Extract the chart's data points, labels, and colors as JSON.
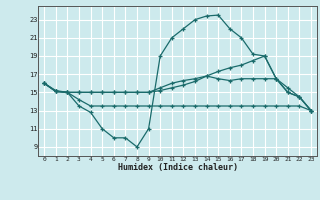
{
  "xlabel": "Humidex (Indice chaleur)",
  "background_color": "#cdeaed",
  "grid_color": "#ffffff",
  "line_color": "#1a6b6b",
  "x_ticks": [
    0,
    1,
    2,
    3,
    4,
    5,
    6,
    7,
    8,
    9,
    10,
    11,
    12,
    13,
    14,
    15,
    16,
    17,
    18,
    19,
    20,
    21,
    22,
    23
  ],
  "y_ticks": [
    9,
    11,
    13,
    15,
    17,
    19,
    21,
    23
  ],
  "ylim": [
    8.0,
    24.5
  ],
  "xlim": [
    -0.5,
    23.5
  ],
  "series": [
    {
      "x": [
        0,
        1,
        2,
        3,
        4,
        5,
        6,
        7,
        8,
        9,
        10,
        11,
        12,
        13,
        14,
        15,
        16,
        17,
        18,
        19,
        20,
        21,
        22,
        23
      ],
      "y": [
        16,
        15.2,
        15,
        13.5,
        12.8,
        11,
        10,
        10,
        9,
        11,
        19,
        21,
        22,
        23,
        23.4,
        23.5,
        22,
        21,
        19.2,
        19,
        16.5,
        15,
        14.5,
        13
      ]
    },
    {
      "x": [
        0,
        1,
        2,
        3,
        4,
        5,
        6,
        7,
        8,
        9,
        10,
        11,
        12,
        13,
        14,
        15,
        16,
        17,
        18,
        19,
        20,
        21,
        22,
        23
      ],
      "y": [
        16,
        15.1,
        15,
        14.2,
        13.5,
        13.5,
        13.5,
        13.5,
        13.5,
        13.5,
        13.5,
        13.5,
        13.5,
        13.5,
        13.5,
        13.5,
        13.5,
        13.5,
        13.5,
        13.5,
        13.5,
        13.5,
        13.5,
        13
      ]
    },
    {
      "x": [
        0,
        1,
        2,
        3,
        4,
        5,
        6,
        7,
        8,
        9,
        10,
        11,
        12,
        13,
        14,
        15,
        16,
        17,
        18,
        19,
        20,
        21,
        22,
        23
      ],
      "y": [
        16,
        15.1,
        15,
        15,
        15,
        15,
        15,
        15,
        15,
        15,
        15.2,
        15.5,
        15.8,
        16.2,
        16.8,
        17.3,
        17.7,
        18,
        18.5,
        19,
        16.5,
        15,
        14.5,
        13
      ]
    },
    {
      "x": [
        0,
        1,
        2,
        3,
        4,
        5,
        6,
        7,
        8,
        9,
        10,
        11,
        12,
        13,
        14,
        15,
        16,
        17,
        18,
        19,
        20,
        21,
        22,
        23
      ],
      "y": [
        16,
        15.1,
        15,
        15,
        15,
        15,
        15,
        15,
        15,
        15,
        15.5,
        16,
        16.3,
        16.5,
        16.8,
        16.5,
        16.3,
        16.5,
        16.5,
        16.5,
        16.5,
        15.5,
        14.5,
        13
      ]
    }
  ]
}
